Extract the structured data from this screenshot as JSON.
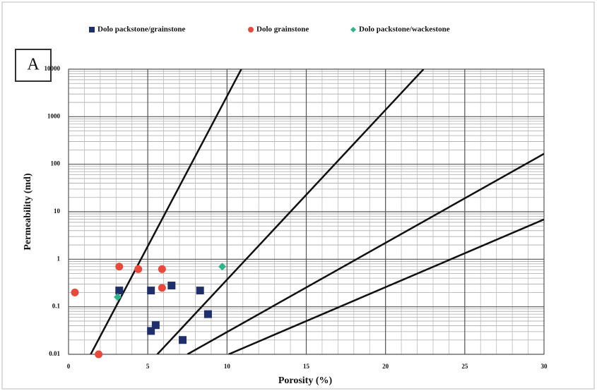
{
  "chart_data": {
    "type": "scatter",
    "panel_label": "A",
    "x_label": "Porosity (%)",
    "y_label": "Permeability (md)",
    "xlim": [
      0,
      30
    ],
    "xticks": [
      0,
      5,
      10,
      15,
      20,
      25,
      30
    ],
    "ylim": [
      0.01,
      10000
    ],
    "yticks": [
      0.01,
      0.1,
      1,
      10,
      100,
      1000,
      10000
    ],
    "y_log": true,
    "grid": true,
    "minor_grid": true,
    "legend": "top",
    "series": [
      {
        "name": "Dolo packstone/grainstone",
        "color": "#1f2f6b",
        "marker": "square",
        "x": [
          3.2,
          5.2,
          6.5,
          8.3,
          8.8,
          5.2,
          5.5,
          7.2
        ],
        "values": [
          0.22,
          0.22,
          0.28,
          0.22,
          0.07,
          0.031,
          0.041,
          0.02
        ]
      },
      {
        "name": "Dolo grainstone",
        "color": "#e8493a",
        "marker": "circle",
        "x": [
          0.4,
          1.9,
          3.2,
          4.4,
          5.9,
          5.9
        ],
        "values": [
          0.2,
          0.01,
          0.7,
          0.62,
          0.62,
          0.25
        ]
      },
      {
        "name": "Dolo packstone/wackestone",
        "color": "#2fb38a",
        "marker": "diamond",
        "x": [
          9.7,
          3.1
        ],
        "values": [
          0.7,
          0.16
        ]
      }
    ],
    "lines": [
      {
        "x": [
          1.4,
          10.9
        ],
        "values": [
          0.01,
          10000
        ]
      },
      {
        "x": [
          5.6,
          22.4
        ],
        "values": [
          0.01,
          10000
        ]
      },
      {
        "x": [
          7.5,
          30
        ],
        "values": [
          0.01,
          166
        ]
      },
      {
        "x": [
          10.1,
          30
        ],
        "values": [
          0.01,
          6.9
        ]
      }
    ]
  }
}
